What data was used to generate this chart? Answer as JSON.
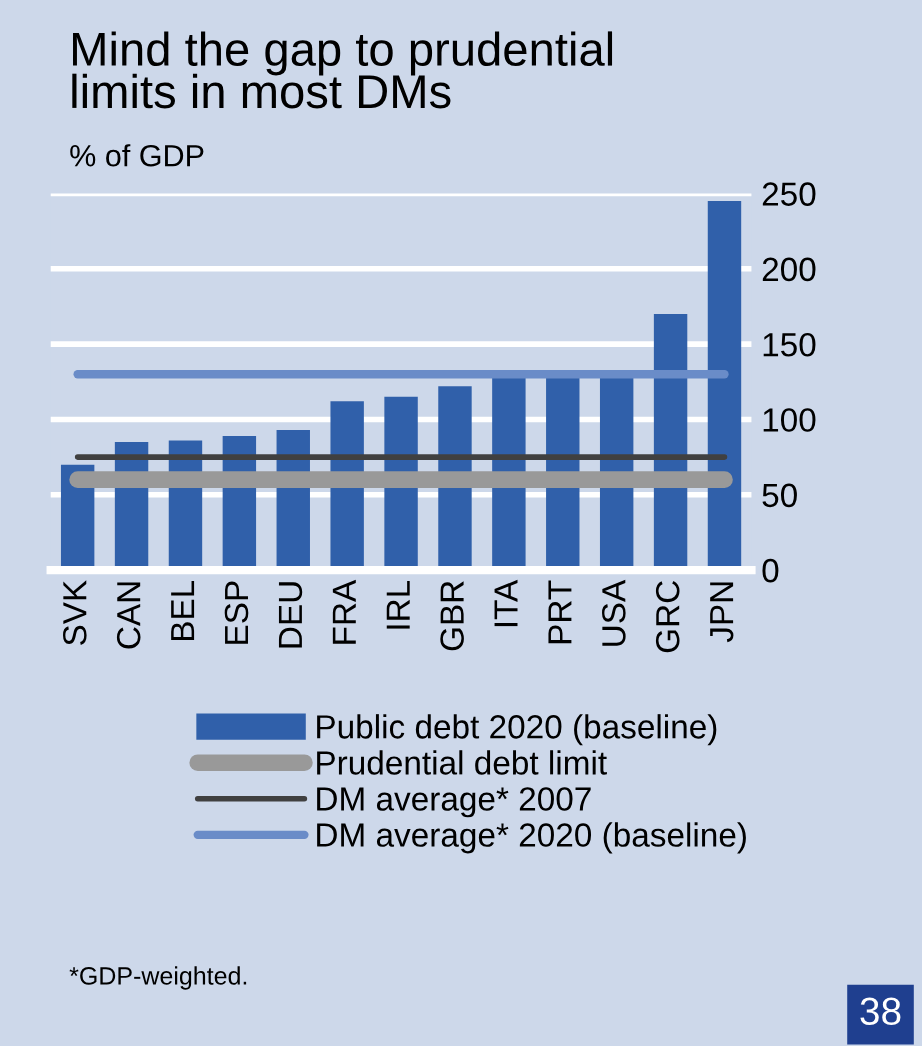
{
  "chart_data": {
    "type": "bar",
    "title": "Mind the gap to prudential\nlimits in most DMs",
    "subtitle": "% of GDP",
    "categories": [
      "SVK",
      "CAN",
      "BEL",
      "ESP",
      "DEU",
      "FRA",
      "IRL",
      "GBR",
      "ITA",
      "PRT",
      "USA",
      "GRC",
      "JPN"
    ],
    "series": [
      {
        "name": "Public debt 2020 (baseline)",
        "color": "#3060aa",
        "values": [
          70,
          85,
          86,
          89,
          93,
          112,
          115,
          122,
          128,
          128,
          128,
          170,
          245
        ]
      },
      {
        "name": "Prudential debt limit",
        "type": "line",
        "color": "#999999",
        "values": [
          60,
          60,
          60,
          60,
          60,
          60,
          60,
          60,
          60,
          60,
          60,
          60,
          60
        ]
      },
      {
        "name": "DM average* 2007",
        "type": "line",
        "color": "#404040",
        "values": [
          75,
          75,
          75,
          75,
          75,
          75,
          75,
          75,
          75,
          75,
          75,
          75,
          75
        ]
      },
      {
        "name": "DM average* 2020 (baseline)",
        "type": "line",
        "color": "#6a8cc8",
        "values": [
          130,
          130,
          130,
          130,
          130,
          130,
          130,
          130,
          130,
          130,
          130,
          130,
          130
        ]
      }
    ],
    "ylim": [
      0,
      250
    ],
    "yticks": [
      0,
      50,
      100,
      150,
      200,
      250
    ],
    "grid": "y",
    "legend": "bottom",
    "annotations": [
      "*GDP-weighted.",
      "38"
    ]
  }
}
